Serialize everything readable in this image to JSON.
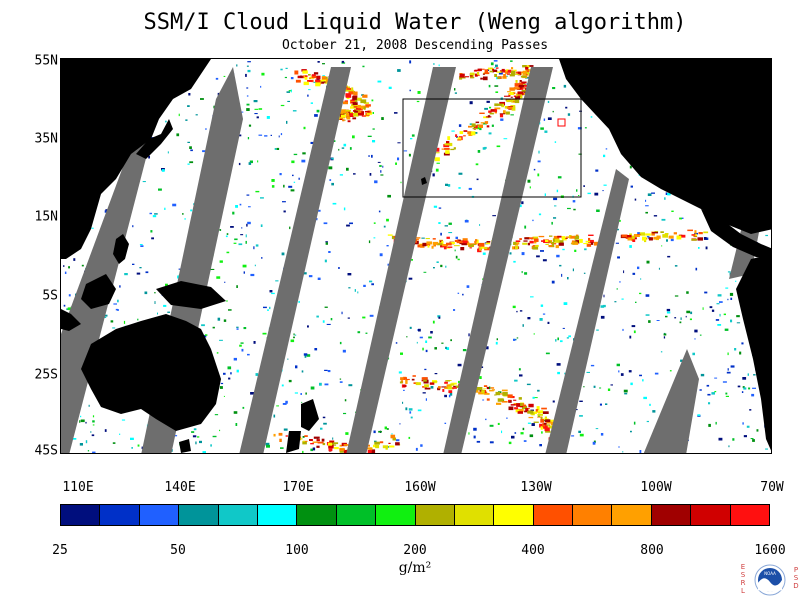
{
  "title": "SSM/I Cloud Liquid Water (Weng algorithm)",
  "subtitle": "October 21, 2008  Descending Passes",
  "lat_labels": [
    "55N",
    "35N",
    "15N",
    "5S",
    "25S",
    "45S"
  ],
  "lon_labels": [
    "110E",
    "140E",
    "170E",
    "160W",
    "130W",
    "100W",
    "70W"
  ],
  "colorbar": {
    "tick_labels": [
      "25",
      "50",
      "100",
      "200",
      "400",
      "800",
      "1600"
    ],
    "colors": [
      "#000e7d",
      "#0030c8",
      "#2060ff",
      "#00949a",
      "#10c8c8",
      "#00ffff",
      "#009010",
      "#00c028",
      "#10f010",
      "#b0b000",
      "#e0e000",
      "#ffff00",
      "#ff5000",
      "#ff8000",
      "#ffa000",
      "#a00000",
      "#d00000",
      "#ff1010"
    ],
    "units": "g/m²"
  },
  "map": {
    "land_color": "#000000",
    "no_data_color": "#6e6e6e",
    "ocean_color": "#ffffff",
    "lat_range": [
      "45S",
      "55N"
    ],
    "lon_range": [
      "110E",
      "70W"
    ]
  },
  "logo": {
    "left_letters": [
      "E",
      "S",
      "R",
      "L"
    ],
    "right_letters": [
      "P",
      "S",
      "D"
    ],
    "center_text": "NOAA"
  }
}
